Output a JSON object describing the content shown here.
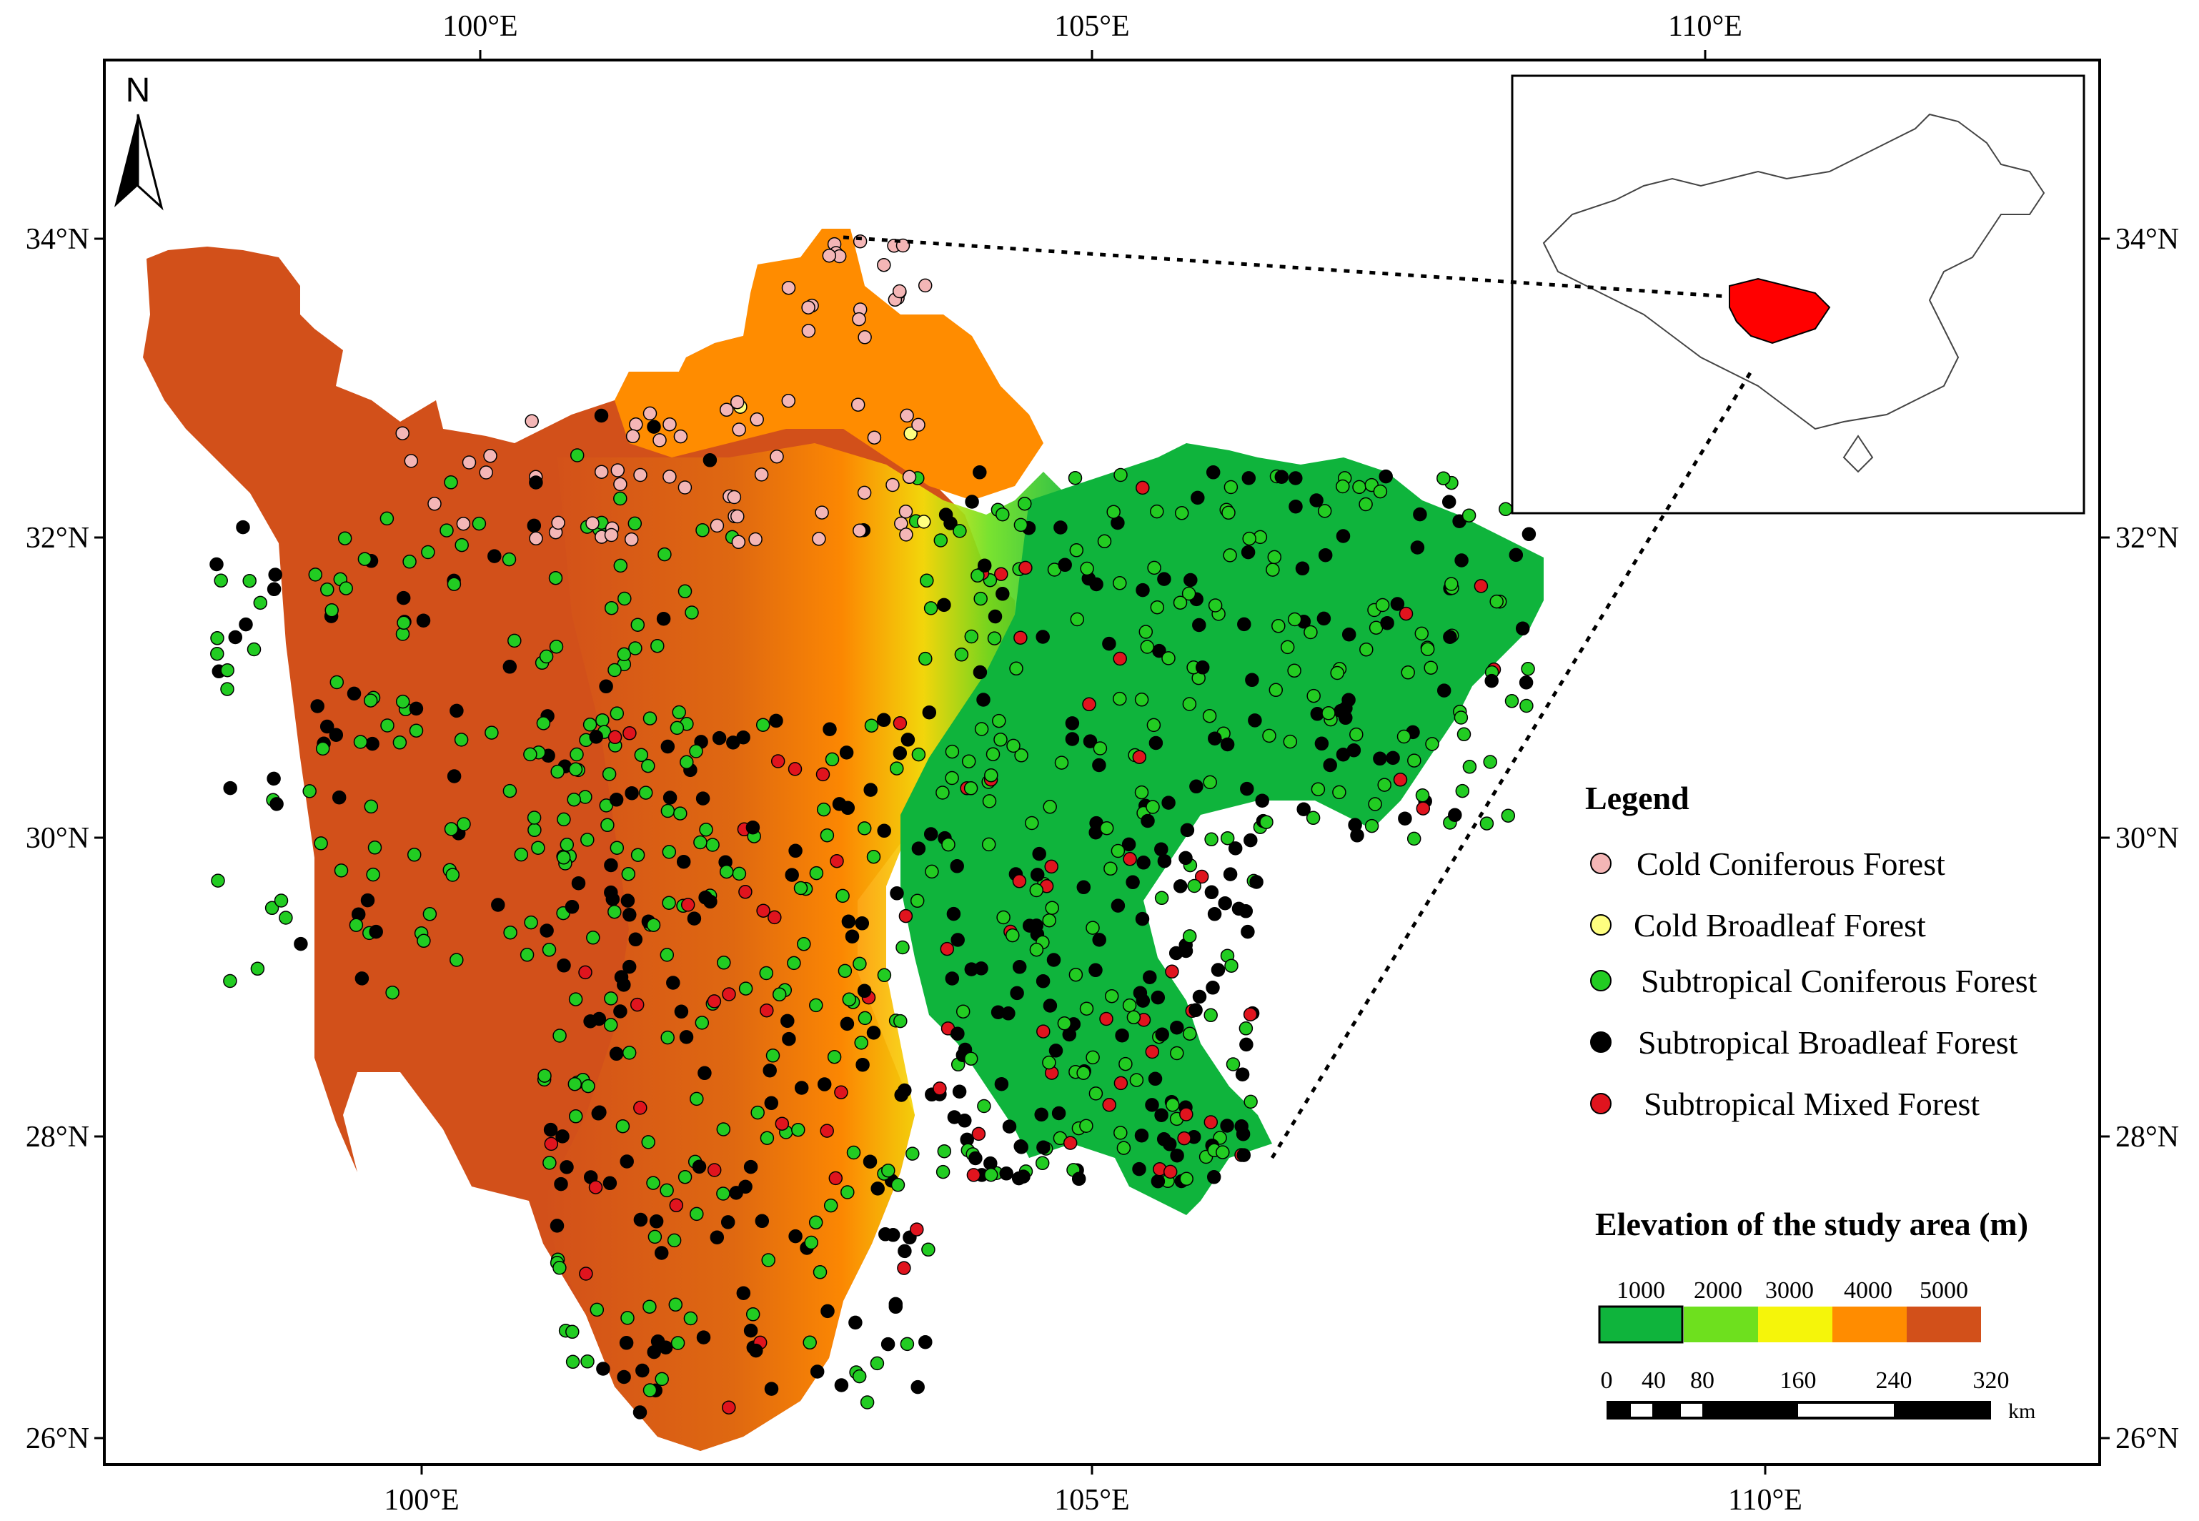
{
  "map": {
    "north_label": "N",
    "lon_ticks": [
      {
        "label": "100°E",
        "value": 100
      },
      {
        "label": "105°E",
        "value": 105
      },
      {
        "label": "110°E",
        "value": 110
      }
    ],
    "lat_ticks": [
      {
        "label": "34°N",
        "value": 34
      },
      {
        "label": "32°N",
        "value": 32
      },
      {
        "label": "30°N",
        "value": 30
      },
      {
        "label": "28°N",
        "value": 28
      },
      {
        "label": "26°N",
        "value": 26
      }
    ],
    "extent": {
      "lon_min": 97.0,
      "lon_max": 113.3,
      "lat_min": 25.8,
      "lat_max": 35.2
    }
  },
  "legend": {
    "title": "Legend",
    "items": [
      {
        "label": "Cold Coniferous Forest",
        "color": "#f4b6b6"
      },
      {
        "label": "Cold Broadleaf Forest",
        "color": "#ffff80"
      },
      {
        "label": "Subtropical Coniferous Forest",
        "color": "#22cc22"
      },
      {
        "label": "Subtropical Broadleaf Forest",
        "color": "#000000"
      },
      {
        "label": "Subtropical Mixed Forest",
        "color": "#e0141e"
      }
    ]
  },
  "elevation": {
    "title": "Elevation of the study area (m)",
    "labels": [
      "1000",
      "2000",
      "3000",
      "4000",
      "5000"
    ],
    "colors": [
      "#0fb43c",
      "#6ee01e",
      "#f5f50a",
      "#ff8c00",
      "#d2501a"
    ]
  },
  "scale_bar": {
    "labels": [
      "0",
      "40",
      "80",
      "160",
      "240",
      "320"
    ],
    "unit": "km"
  },
  "colors": {
    "highland": "#d2501a",
    "plateau_orange": "#ff8c00",
    "basin_green": "#0fb43c",
    "inset_highlight": "#ff0000"
  }
}
